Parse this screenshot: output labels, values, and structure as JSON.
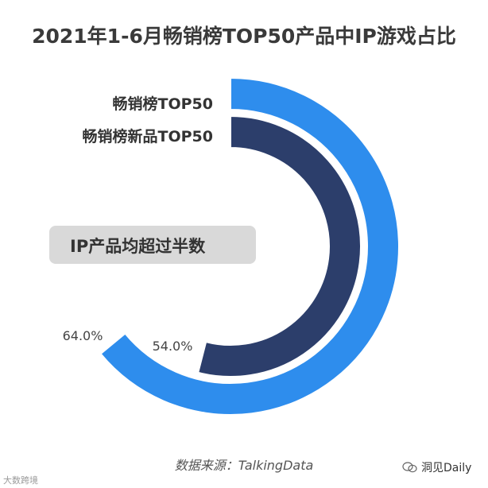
{
  "chart_data": {
    "type": "pie",
    "title": "2021年1-6月畅销榜TOP50产品中IP游戏占比",
    "series": [
      {
        "name": "畅销榜TOP50",
        "value": 64.0,
        "label": "64.0%",
        "color": "#2e8ded"
      },
      {
        "name": "畅销榜新品TOP50",
        "value": 54.0,
        "label": "54.0%",
        "color": "#2c3e6b"
      }
    ],
    "max": 100
  },
  "callout": "IP产品均超过半数",
  "source": "数据来源：TalkingData",
  "watermark_right": "洞见Daily",
  "watermark_left": "大数跨境"
}
